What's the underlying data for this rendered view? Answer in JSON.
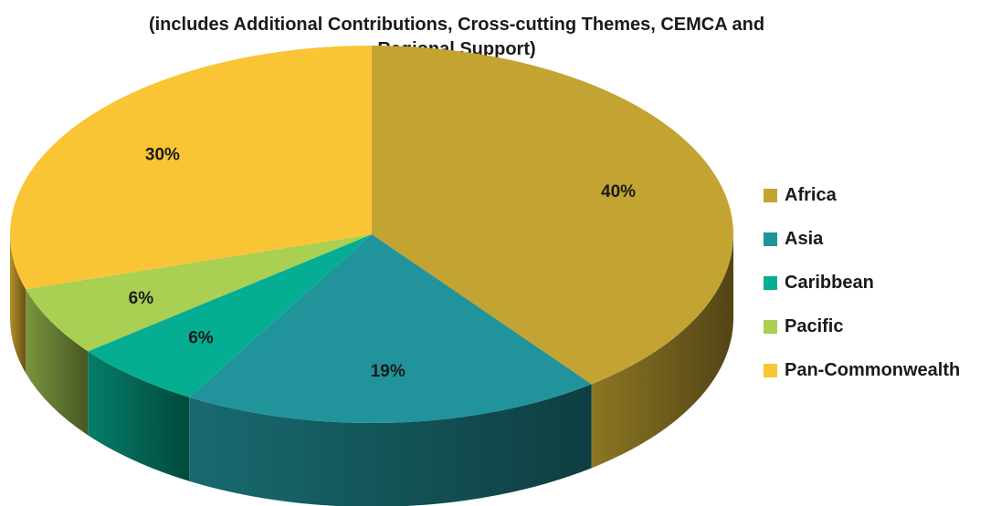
{
  "chart_data": {
    "type": "pie",
    "style": "3d",
    "subtitle_lines": [
      "(includes Additional Contributions, Cross-cutting Themes, CEMCA and",
      "Regional Support)"
    ],
    "legend_position": "right",
    "slices": [
      {
        "name": "Africa",
        "value": 40,
        "label": "40%",
        "color": "#c3a432"
      },
      {
        "name": "Asia",
        "value": 19,
        "label": "19%",
        "color": "#21939b"
      },
      {
        "name": "Caribbean",
        "value": 6,
        "label": "6%",
        "color": "#05ae92"
      },
      {
        "name": "Pacific",
        "value": 6,
        "label": "6%",
        "color": "#a9cf53"
      },
      {
        "name": "Pan-Commonwealth",
        "value": 30,
        "label": "30%",
        "color": "#f9c535"
      }
    ]
  }
}
